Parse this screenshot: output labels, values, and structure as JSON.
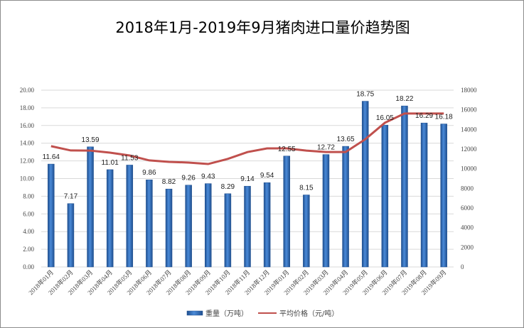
{
  "chart_data": {
    "type": "bar+line",
    "title": "2018年1月-2019年9月猪肉进口量价趋势图",
    "categories": [
      "2018年01月",
      "2018年02月",
      "2018年03月",
      "2018年04月",
      "2018年05月",
      "2018年06月",
      "2018年07月",
      "2018年08月",
      "2018年09月",
      "2018年10月",
      "2018年11月",
      "2018年12月",
      "2019年01月",
      "2019年02月",
      "2019年03月",
      "2019年04月",
      "2019年05月",
      "2019年06月",
      "2019年07月",
      "2019年08月",
      "2019年09月"
    ],
    "series": [
      {
        "name": "重量（万吨）",
        "type": "bar",
        "axis": "left",
        "color": "#2e6fbf",
        "values": [
          11.64,
          7.17,
          13.59,
          11.01,
          11.53,
          9.86,
          8.82,
          9.26,
          9.43,
          8.29,
          9.14,
          9.54,
          12.55,
          8.15,
          12.72,
          13.65,
          18.75,
          16.05,
          18.22,
          16.29,
          16.18
        ]
      },
      {
        "name": "平均价格（元/吨）",
        "type": "line",
        "axis": "right",
        "color": "#c0504d",
        "values": [
          12300,
          11860,
          11850,
          11640,
          11350,
          10850,
          10700,
          10630,
          10480,
          11000,
          11700,
          12070,
          12070,
          11850,
          11700,
          11700,
          13000,
          14680,
          15620,
          15620,
          15620
        ]
      }
    ],
    "left_axis": {
      "ylim": [
        0,
        20
      ],
      "ticks": [
        "0.00",
        "2.00",
        "4.00",
        "6.00",
        "8.00",
        "10.00",
        "12.00",
        "14.00",
        "16.00",
        "18.00",
        "20.00"
      ]
    },
    "right_axis": {
      "ylim": [
        0,
        18000
      ],
      "ticks": [
        "0",
        "2000",
        "4000",
        "6000",
        "8000",
        "10000",
        "12000",
        "14000",
        "16000",
        "18000"
      ]
    },
    "grid": true,
    "legend": "bottom"
  }
}
